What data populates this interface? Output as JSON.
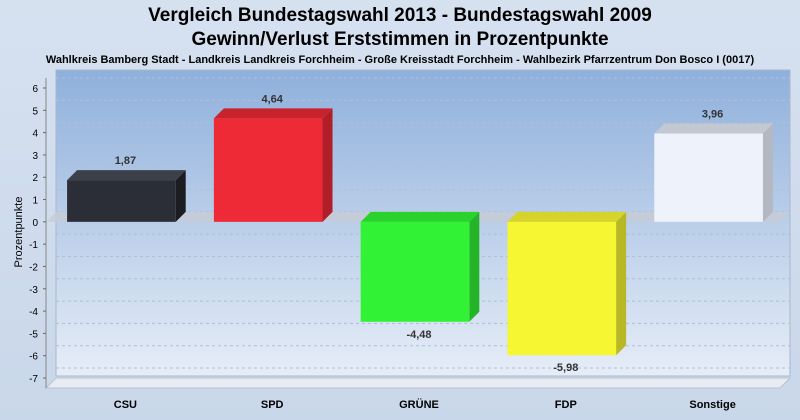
{
  "chart_data": {
    "type": "bar",
    "title": "Vergleich Bundestagswahl 2013 - Bundestagswahl 2009",
    "subtitle": "Gewinn/Verlust Erststimmen in Prozentpunkte",
    "caption": "Wahlkreis Bamberg Stadt - Landkreis Landkreis Forchheim - Große Kreisstadt Forchheim - Wahlbezirk Pfarrzentrum Don Bosco I (0017)",
    "ylabel": "Prozentpunkte",
    "xlabel": "",
    "ylim": [
      -7,
      6
    ],
    "yticks": [
      6,
      5,
      4,
      3,
      2,
      1,
      0,
      -1,
      -2,
      -3,
      -4,
      -5,
      -6,
      -7
    ],
    "grid": true,
    "categories": [
      "CSU",
      "SPD",
      "GRÜNE",
      "FDP",
      "Sonstige"
    ],
    "values": [
      1.87,
      4.64,
      -4.48,
      -5.98,
      3.96
    ],
    "value_labels": [
      "1,87",
      "4,64",
      "-4,48",
      "-5,98",
      "3,96"
    ],
    "colors": [
      "#2b2e36",
      "#ee2a36",
      "#32f236",
      "#f6f632",
      "#eef2fa"
    ],
    "side_colors": [
      "#1b1d22",
      "#b01e28",
      "#24b428",
      "#b8b824",
      "#b4b8c2"
    ],
    "top_colors": [
      "#3c404a",
      "#c8222c",
      "#2ad22e",
      "#d4d42a",
      "#c4c8d2"
    ]
  }
}
